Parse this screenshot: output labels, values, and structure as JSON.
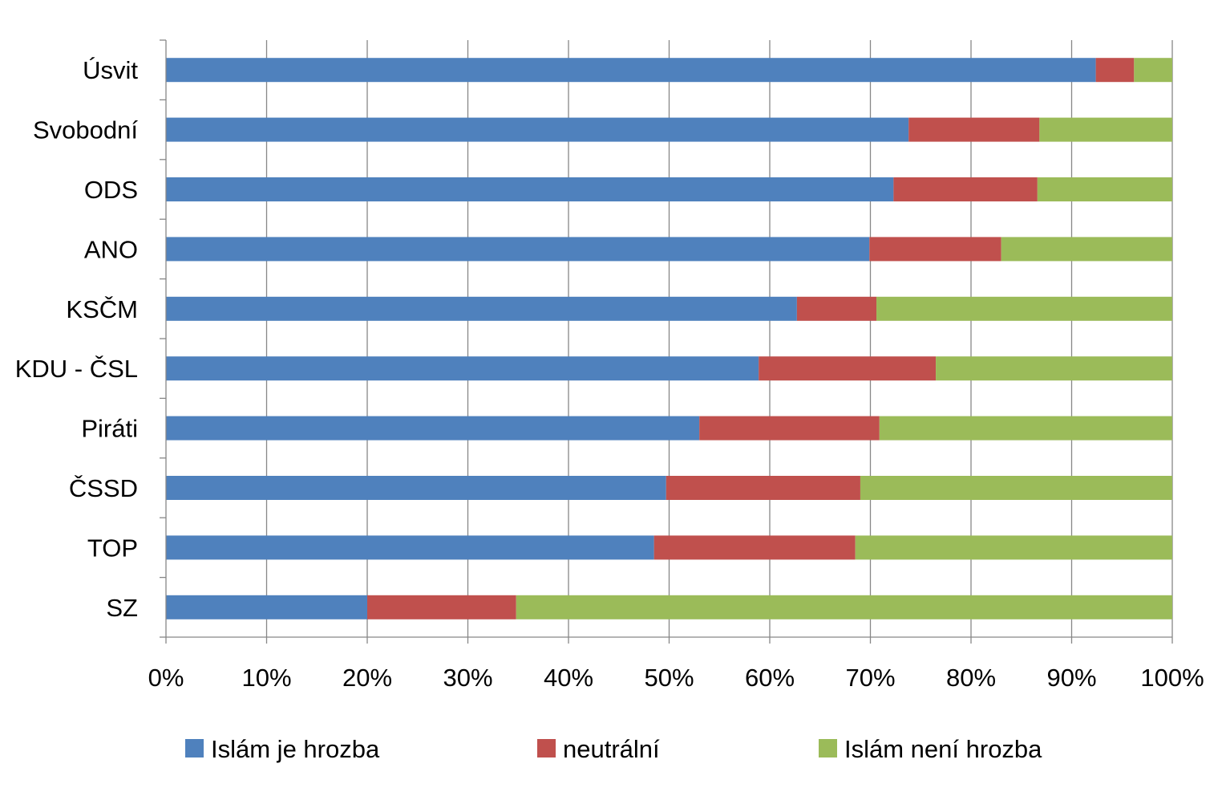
{
  "chart_data": {
    "type": "bar",
    "orientation": "horizontal",
    "stacked": "percent",
    "categories": [
      "Úsvit",
      "Svobodní",
      "ODS",
      "ANO",
      "KSČM",
      "KDU - ČSL",
      "Piráti",
      "ČSSD",
      "TOP",
      "SZ"
    ],
    "series": [
      {
        "name": "Islám je hrozba",
        "color": "#4F81BD",
        "values": [
          92.4,
          73.8,
          72.3,
          69.9,
          62.7,
          58.9,
          53.0,
          49.7,
          48.5,
          20.0
        ]
      },
      {
        "name": "neutrální",
        "color": "#C0504D",
        "values": [
          3.8,
          13.0,
          14.3,
          13.1,
          7.9,
          17.6,
          17.9,
          19.3,
          20.0,
          14.8
        ]
      },
      {
        "name": "Islám není hrozba",
        "color": "#9BBB59",
        "values": [
          3.8,
          13.2,
          13.4,
          17.0,
          29.4,
          23.5,
          29.1,
          31.0,
          31.5,
          65.2
        ]
      }
    ],
    "xlim": [
      0,
      100
    ],
    "xticks": [
      "0%",
      "10%",
      "20%",
      "30%",
      "40%",
      "50%",
      "60%",
      "70%",
      "80%",
      "90%",
      "100%"
    ],
    "grid": "vertical",
    "legend": "bottom",
    "title": "",
    "xlabel": "",
    "ylabel": ""
  }
}
